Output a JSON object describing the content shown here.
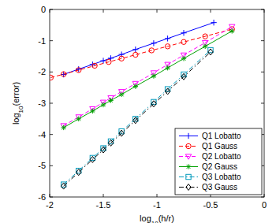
{
  "chart_data": {
    "type": "line",
    "x_label": "log10(h/r)",
    "y_label": "log10(error)",
    "xlim": [
      -2,
      0
    ],
    "ylim": [
      -6,
      0
    ],
    "xticks": [
      -2,
      -1.5,
      -1,
      -0.5,
      0
    ],
    "yticks": [
      -6,
      -5,
      -4,
      -3,
      -2,
      -1,
      0
    ],
    "legend": "lower right",
    "grid": false,
    "series": [
      {
        "name": "Q1 Lobatto",
        "color": "#0000ff",
        "marker": "plus",
        "line_style": "solid",
        "x": [
          -1.87,
          -1.73,
          -1.6,
          -1.5,
          -1.43,
          -1.33,
          -1.2,
          -1.03,
          -0.9,
          -0.75,
          -0.47
        ],
        "values": [
          -2.08,
          -1.91,
          -1.76,
          -1.64,
          -1.56,
          -1.44,
          -1.28,
          -1.08,
          -0.93,
          -0.75,
          -0.42
        ]
      },
      {
        "name": "Q1 Gauss",
        "color": "#ff0000",
        "marker": "circle",
        "line_style": "dashed",
        "x": [
          -1.99,
          -1.87,
          -1.73,
          -1.58,
          -1.45,
          -1.33,
          -1.2,
          -1.05,
          -0.9,
          -0.75,
          -0.55,
          -0.3
        ],
        "values": [
          -2.18,
          -2.07,
          -1.94,
          -1.8,
          -1.68,
          -1.57,
          -1.45,
          -1.31,
          -1.18,
          -1.04,
          -0.86,
          -0.63
        ]
      },
      {
        "name": "Q2 Lobatto",
        "color": "#ff00ff",
        "marker": "triangle-down",
        "line_style": "dashed",
        "x": [
          -1.87,
          -1.73,
          -1.6,
          -1.5,
          -1.43,
          -1.33,
          -1.2,
          -1.03,
          -0.9,
          -0.75,
          -0.55,
          -0.3
        ],
        "values": [
          -3.72,
          -3.44,
          -3.18,
          -2.97,
          -2.83,
          -2.63,
          -2.37,
          -2.03,
          -1.76,
          -1.46,
          -1.06,
          -0.55
        ]
      },
      {
        "name": "Q2 Gauss",
        "color": "#00a000",
        "marker": "star",
        "line_style": "solid",
        "x": [
          -1.87,
          -1.73,
          -1.6,
          -1.5,
          -1.43,
          -1.33,
          -1.2,
          -1.03,
          -0.9,
          -0.75,
          -0.55,
          -0.3
        ],
        "values": [
          -3.78,
          -3.5,
          -3.25,
          -3.05,
          -2.91,
          -2.72,
          -2.46,
          -2.13,
          -1.87,
          -1.57,
          -1.18,
          -0.69
        ]
      },
      {
        "name": "Q3 Lobatto",
        "color": "#0099bb",
        "marker": "square",
        "line_style": "dash-dot",
        "x": [
          -1.87,
          -1.73,
          -1.6,
          -1.5,
          -1.43,
          -1.33,
          -1.2,
          -1.03,
          -0.9,
          -0.75,
          -0.5
        ],
        "values": [
          -5.6,
          -5.16,
          -4.75,
          -4.44,
          -4.22,
          -3.9,
          -3.5,
          -2.96,
          -2.55,
          -2.08,
          -1.3
        ]
      },
      {
        "name": "Q3 Gauss",
        "color": "#000000",
        "marker": "diamond",
        "line_style": "dash-dot",
        "x": [
          -1.87,
          -1.73,
          -1.6,
          -1.5,
          -1.43,
          -1.33,
          -1.2,
          -1.03,
          -0.9,
          -0.75,
          -0.5
        ],
        "values": [
          -5.65,
          -5.21,
          -4.8,
          -4.49,
          -4.27,
          -3.96,
          -3.55,
          -3.02,
          -2.62,
          -2.15,
          -1.36
        ]
      }
    ]
  }
}
